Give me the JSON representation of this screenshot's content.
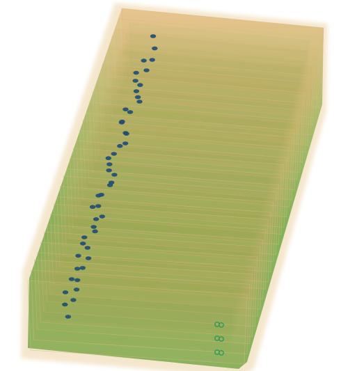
{
  "scene": {
    "subject": "stack-of-translucent-layers",
    "palette": {
      "background": "#ffffff",
      "halo": "#f3e2c3",
      "orange": "#e0a15a",
      "orange_light": "#efc894",
      "green": "#5aa33a",
      "green_dark": "#3f8a2c",
      "dot": "#1f4e73",
      "edge": "#d6b98a",
      "marker": "#2e9a57"
    },
    "layer_count": 30,
    "dot_trails": 2,
    "corner_markers": 3
  }
}
